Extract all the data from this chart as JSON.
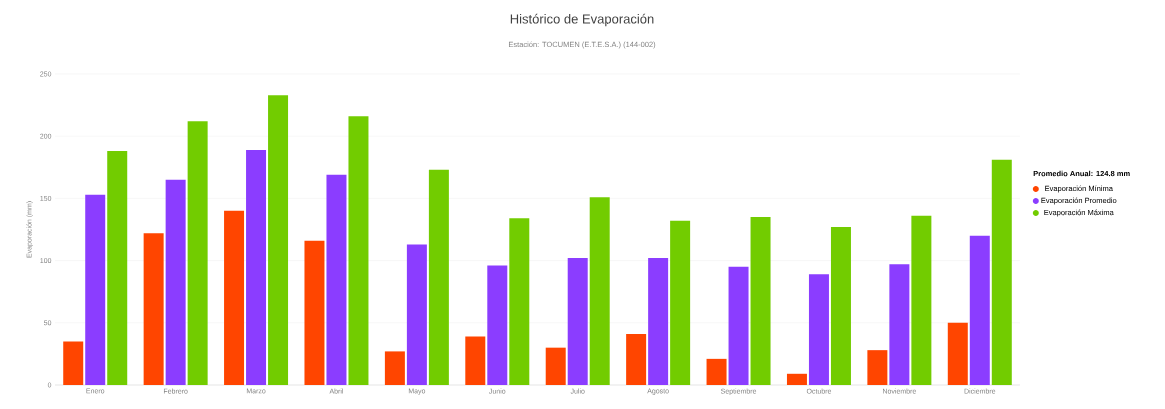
{
  "chart_data": {
    "type": "bar",
    "title": "Histórico de Evaporación",
    "subtitle": "Estación: TOCUMEN (E.T.E.S.A.) (144-002)",
    "ylabel": "Evaporación (mm)",
    "legend_title": "Promedio Anual: 124.8 mm",
    "categories": [
      "Enero",
      "Febrero",
      "Marzo",
      "Abril",
      "Mayo",
      "Junio",
      "Julio",
      "Agosto",
      "Septiembre",
      "Octubre",
      "Noviembre",
      "Diciembre"
    ],
    "series": [
      {
        "name": "Evaporación Mínima",
        "color": "#ff4500",
        "values": [
          35,
          122,
          140,
          116,
          27,
          39,
          30,
          41,
          21,
          9,
          28,
          50
        ]
      },
      {
        "name": "Evaporación Promedio",
        "color": "#8b3dff",
        "values": [
          153,
          165,
          189,
          169,
          113,
          96,
          102,
          102,
          95,
          89,
          97,
          120
        ]
      },
      {
        "name": "Evaporación Máxima",
        "color": "#72cc00",
        "values": [
          188,
          212,
          233,
          216,
          173,
          134,
          151,
          132,
          135,
          127,
          136,
          181
        ]
      }
    ],
    "ylim": [
      0,
      250
    ],
    "yticks": [
      0,
      50,
      100,
      150,
      200,
      250
    ],
    "grid": "y",
    "legend": "right"
  }
}
